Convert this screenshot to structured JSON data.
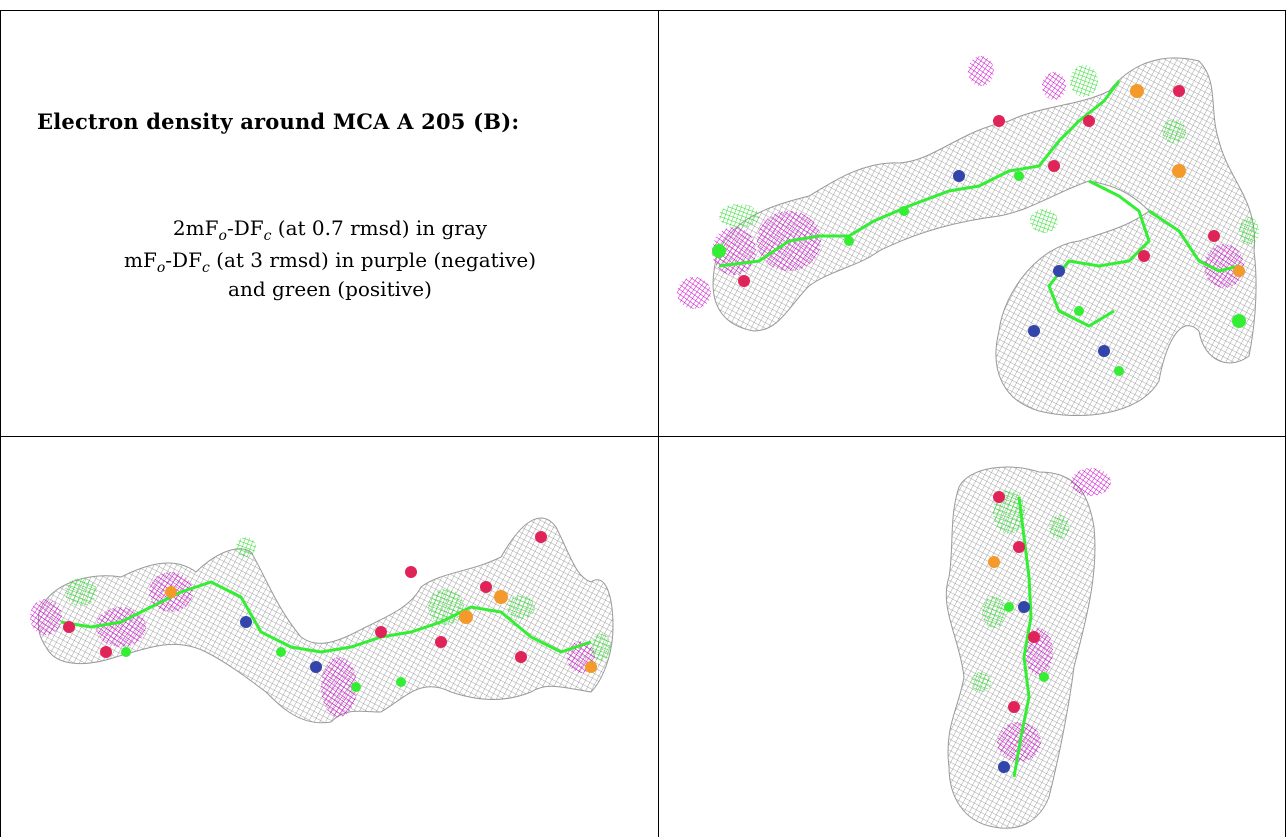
{
  "legend": {
    "title": "Electron density around MCA A 205 (B):",
    "line1": {
      "pre": "2mF",
      "sub1": "o",
      "mid": "-DF",
      "sub2": "c",
      "post": " (at 0.7 rmsd) in gray"
    },
    "line2": {
      "pre": "mF",
      "sub1": "o",
      "mid": "-DF",
      "sub2": "c",
      "post": " (at 3 rmsd) in purple (negative)"
    },
    "line3": "and green (positive)"
  },
  "colors": {
    "map_2fofc": "#8a8a8a",
    "map_negative": "#cc00cc",
    "map_positive": "#22dd22",
    "carbon": "#33ee33",
    "oxygen": "#e0245a",
    "nitrogen": "#3344aa",
    "phosphorus": "#f39a2a"
  },
  "panels": [
    {
      "name": "view-1",
      "icon": "electron-density-mesh-view"
    },
    {
      "name": "view-2",
      "icon": "electron-density-mesh-view"
    },
    {
      "name": "view-3",
      "icon": "electron-density-mesh-view"
    }
  ]
}
